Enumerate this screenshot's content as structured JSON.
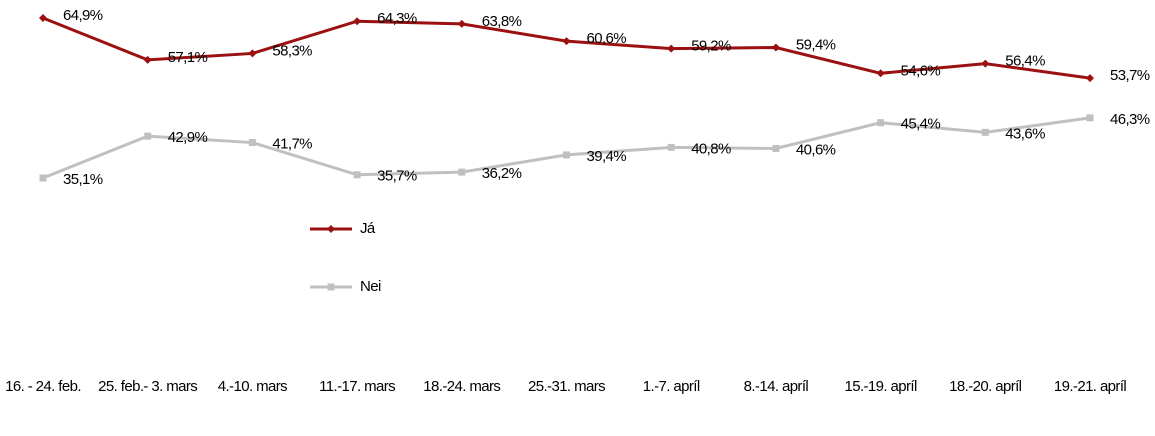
{
  "chart_data": {
    "type": "line",
    "categories": [
      "16. - 24. feb.",
      "25. feb.- 3. mars",
      "4.-10. mars",
      "11.-17. mars",
      "18.-24. mars",
      "25.-31. mars",
      "1.-7. apríl",
      "8.-14. apríl",
      "15.-19. apríl",
      "18.-20. apríl",
      "19.-21. apríl"
    ],
    "series": [
      {
        "name": "Já",
        "color": "#9b1010",
        "marker": "diamond",
        "values": [
          64.9,
          57.1,
          58.3,
          64.3,
          63.8,
          60.6,
          59.2,
          59.4,
          54.6,
          56.4,
          53.7
        ],
        "value_labels": [
          "64,9%",
          "57,1%",
          "58,3%",
          "64,3%",
          "63,8%",
          "60,6%",
          "59,2%",
          "59,4%",
          "54,6%",
          "56,4%",
          "53,7%"
        ]
      },
      {
        "name": "Nei",
        "color": "#c0c0c0",
        "marker": "square",
        "values": [
          35.1,
          42.9,
          41.7,
          35.7,
          36.2,
          39.4,
          40.8,
          40.6,
          45.4,
          43.6,
          46.3
        ],
        "value_labels": [
          "35,1%",
          "42,9%",
          "41,7%",
          "35,7%",
          "36,2%",
          "39,4%",
          "40,8%",
          "40,6%",
          "45,4%",
          "43,6%",
          "46,3%"
        ]
      }
    ]
  }
}
